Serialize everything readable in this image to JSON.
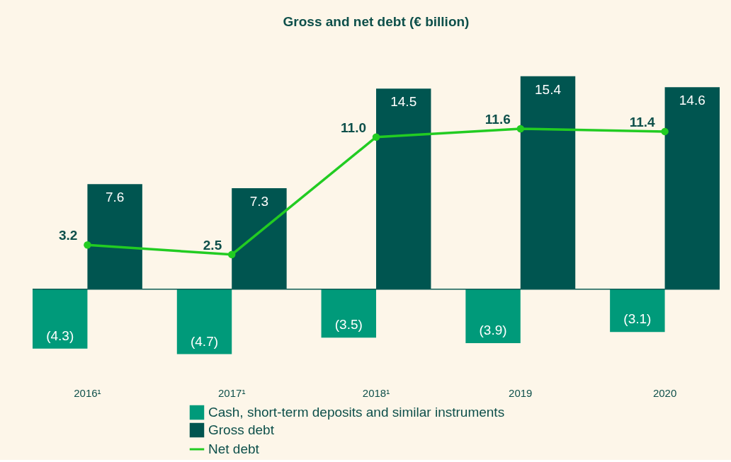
{
  "chart_data": {
    "type": "bar",
    "title": "Gross and net debt (€ billion)",
    "categories": [
      "2016¹",
      "2017¹",
      "2018¹",
      "2019",
      "2020"
    ],
    "series": [
      {
        "name": "Cash, short-term deposits and similar instruments",
        "color": "#009a7a",
        "values": [
          -4.3,
          -4.7,
          -3.5,
          -3.9,
          -3.1
        ],
        "value_labels": [
          "(4.3)",
          "(4.7)",
          "(3.5)",
          "(3.9)",
          "(3.1)"
        ]
      },
      {
        "name": "Gross debt",
        "color": "#005550",
        "values": [
          7.6,
          7.3,
          14.5,
          15.4,
          14.6
        ],
        "value_labels": [
          "7.6",
          "7.3",
          "14.5",
          "15.4",
          "14.6"
        ]
      },
      {
        "name": "Net debt",
        "type": "line",
        "color": "#22cc22",
        "marker": "circle",
        "values": [
          3.2,
          2.5,
          11.0,
          11.6,
          11.4
        ],
        "value_labels": [
          "3.2",
          "2.5",
          "11.0",
          "11.6",
          "11.4"
        ]
      }
    ],
    "ref_lines": [
      {
        "axis": "y",
        "value": 0,
        "color": "#0d5c55"
      }
    ],
    "legend": "bottom",
    "grid": false
  }
}
